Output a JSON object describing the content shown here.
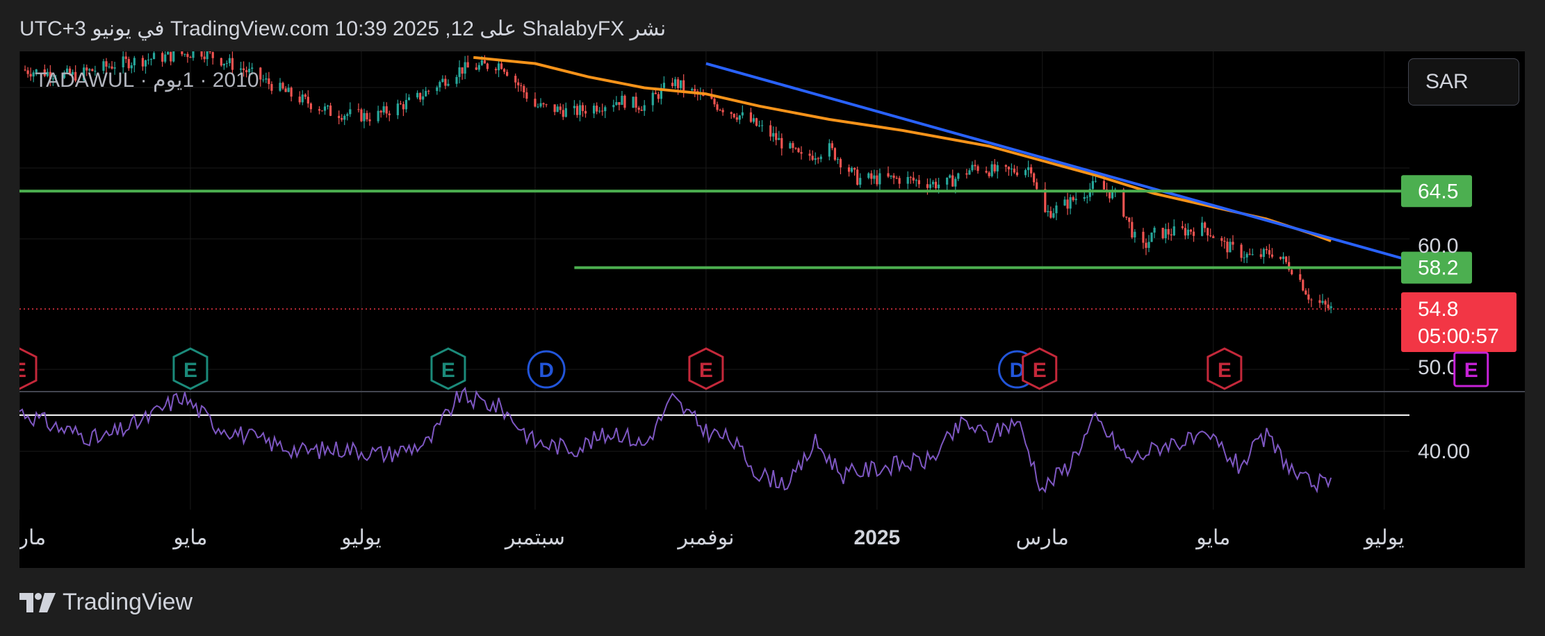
{
  "header": {
    "caption": "نشر ShalabyFX على TradingView.com 10:39 2025 ,12 في يونيو UTC+3"
  },
  "chart_header": {
    "symbol_label": "2010 · 1يوم · TADAWUL",
    "currency": "SAR"
  },
  "footer": {
    "brand": "TradingView"
  },
  "colors": {
    "background": "#000000",
    "page": "#1e1e1e",
    "up_candle": "#26a69a",
    "down_candle": "#ef5350",
    "ma_line": "#f7931a",
    "trendline": "#2962ff",
    "support_line": "#4caf50",
    "rsi": "#7e57c2",
    "price_badge": "#f23645",
    "earnings_red": "#c4283a",
    "earnings_green": "#1b8a7a",
    "dividend": "#2255d9",
    "earnings_future": "#c522d6"
  },
  "chart_data": [
    {
      "type": "candlestick",
      "title": "",
      "xlabel": "",
      "ylabel": "",
      "x_ticks": [
        "مارس",
        "مايو",
        "يوليو",
        "سبتمبر",
        "نوفمبر",
        "2025",
        "مارس",
        "مايو",
        "يوليو"
      ],
      "x_range": [
        "2024-03-01",
        "2025-07-10"
      ],
      "y_range": [
        48,
        76
      ],
      "y_ticks": [
        {
          "value": 60.0,
          "label": "60.0"
        },
        {
          "value": 50.0,
          "label": "50.00"
        }
      ],
      "grid": true,
      "close_path": [
        [
          "2024-03-01",
          74.5
        ],
        [
          "2024-03-20",
          74.0
        ],
        [
          "2024-04-05",
          75.0
        ],
        [
          "2024-04-20",
          75.5
        ],
        [
          "2024-05-05",
          76.0
        ],
        [
          "2024-05-20",
          74.5
        ],
        [
          "2024-06-05",
          72.5
        ],
        [
          "2024-06-20",
          71.0
        ],
        [
          "2024-07-05",
          70.6
        ],
        [
          "2024-07-20",
          72.0
        ],
        [
          "2024-08-05",
          74.5
        ],
        [
          "2024-08-20",
          75.0
        ],
        [
          "2024-09-01",
          71.5
        ],
        [
          "2024-09-15",
          71.0
        ],
        [
          "2024-10-01",
          72.0
        ],
        [
          "2024-10-10",
          71.5
        ],
        [
          "2024-10-20",
          73.5
        ],
        [
          "2024-11-01",
          72.0
        ],
        [
          "2024-11-15",
          70.5
        ],
        [
          "2024-11-25",
          69.0
        ],
        [
          "2024-12-05",
          67.2
        ],
        [
          "2024-12-15",
          68.0
        ],
        [
          "2024-12-25",
          65.5
        ],
        [
          "2025-01-10",
          65.5
        ],
        [
          "2025-01-25",
          65.0
        ],
        [
          "2025-02-05",
          66.5
        ],
        [
          "2025-02-15",
          66.0
        ],
        [
          "2025-02-25",
          66.5
        ],
        [
          "2025-03-01",
          62.5
        ],
        [
          "2025-03-10",
          63.5
        ],
        [
          "2025-03-20",
          65.0
        ],
        [
          "2025-03-28",
          64.0
        ],
        [
          "2025-04-05",
          59.5
        ],
        [
          "2025-04-10",
          61.0
        ],
        [
          "2025-04-20",
          61.2
        ],
        [
          "2025-04-28",
          61.5
        ],
        [
          "2025-05-05",
          60.0
        ],
        [
          "2025-05-15",
          59.0
        ],
        [
          "2025-05-22",
          59.5
        ],
        [
          "2025-05-30",
          58.0
        ],
        [
          "2025-06-05",
          55.5
        ],
        [
          "2025-06-12",
          54.8
        ]
      ],
      "moving_average": [
        [
          "2024-08-10",
          75.5
        ],
        [
          "2024-09-01",
          75.0
        ],
        [
          "2024-09-20",
          73.9
        ],
        [
          "2024-10-10",
          73.0
        ],
        [
          "2024-11-01",
          72.5
        ],
        [
          "2024-11-20",
          71.5
        ],
        [
          "2024-12-15",
          70.4
        ],
        [
          "2025-01-10",
          69.5
        ],
        [
          "2025-02-10",
          68.2
        ],
        [
          "2025-03-01",
          67.0
        ],
        [
          "2025-03-20",
          65.8
        ],
        [
          "2025-04-10",
          64.3
        ],
        [
          "2025-05-01",
          63.2
        ],
        [
          "2025-05-20",
          62.2
        ],
        [
          "2025-06-05",
          61.0
        ],
        [
          "2025-06-12",
          60.4
        ]
      ],
      "trendline": [
        [
          "2024-11-01",
          75.0
        ],
        [
          "2025-07-10",
          58.8
        ]
      ],
      "horizontal_levels": [
        {
          "value": 64.5,
          "label": "64.5",
          "from": "2024-03-01"
        },
        {
          "value": 58.2,
          "label": "58.2",
          "from": "2024-09-15"
        }
      ],
      "last_price": {
        "value": 54.8,
        "label": "54.8",
        "countdown": "05:00:57"
      },
      "events": [
        {
          "date": "2024-03-01",
          "kind": "E",
          "status": "negative"
        },
        {
          "date": "2024-05-01",
          "kind": "E",
          "status": "positive"
        },
        {
          "date": "2024-08-01",
          "kind": "E",
          "status": "positive"
        },
        {
          "date": "2024-09-05",
          "kind": "D",
          "status": "dividend"
        },
        {
          "date": "2024-11-01",
          "kind": "E",
          "status": "negative"
        },
        {
          "date": "2025-02-20",
          "kind": "D",
          "status": "dividend"
        },
        {
          "date": "2025-02-28",
          "kind": "E",
          "status": "negative"
        },
        {
          "date": "2025-05-05",
          "kind": "E",
          "status": "negative"
        },
        {
          "date": "2025-08-01",
          "kind": "E",
          "status": "future"
        }
      ]
    },
    {
      "type": "line",
      "title": "",
      "xlabel": "",
      "ylabel": "",
      "y_range": [
        30,
        50
      ],
      "y_ticks": [
        {
          "value": 40,
          "label": "40.00"
        }
      ],
      "reference_line": 46.2,
      "series": [
        {
          "values": [
            [
              "2024-03-01",
              47.0
            ],
            [
              "2024-03-15",
              44.0
            ],
            [
              "2024-03-30",
              42.0
            ],
            [
              "2024-04-15",
              45.5
            ],
            [
              "2024-04-28",
              49.5
            ],
            [
              "2024-05-10",
              44.5
            ],
            [
              "2024-05-25",
              42.0
            ],
            [
              "2024-06-10",
              40.0
            ],
            [
              "2024-06-25",
              40.5
            ],
            [
              "2024-07-10",
              39.5
            ],
            [
              "2024-07-25",
              41.5
            ],
            [
              "2024-08-05",
              49.5
            ],
            [
              "2024-08-20",
              47.5
            ],
            [
              "2024-09-01",
              41.5
            ],
            [
              "2024-09-15",
              40.5
            ],
            [
              "2024-09-30",
              43.5
            ],
            [
              "2024-10-10",
              41.0
            ],
            [
              "2024-10-20",
              49.0
            ],
            [
              "2024-11-01",
              43.5
            ],
            [
              "2024-11-10",
              42.0
            ],
            [
              "2024-11-20",
              36.0
            ],
            [
              "2024-12-01",
              34.5
            ],
            [
              "2024-12-10",
              41.5
            ],
            [
              "2024-12-20",
              36.0
            ],
            [
              "2025-01-05",
              37.5
            ],
            [
              "2025-01-20",
              38.5
            ],
            [
              "2025-02-01",
              45.0
            ],
            [
              "2025-02-10",
              42.5
            ],
            [
              "2025-02-20",
              45.5
            ],
            [
              "2025-03-01",
              33.5
            ],
            [
              "2025-03-10",
              37.5
            ],
            [
              "2025-03-20",
              45.5
            ],
            [
              "2025-04-01",
              38.5
            ],
            [
              "2025-04-15",
              41.5
            ],
            [
              "2025-05-01",
              42.0
            ],
            [
              "2025-05-10",
              37.5
            ],
            [
              "2025-05-20",
              42.5
            ],
            [
              "2025-06-01",
              35.0
            ],
            [
              "2025-06-08",
              34.5
            ],
            [
              "2025-06-12",
              34.0
            ]
          ]
        }
      ]
    }
  ]
}
